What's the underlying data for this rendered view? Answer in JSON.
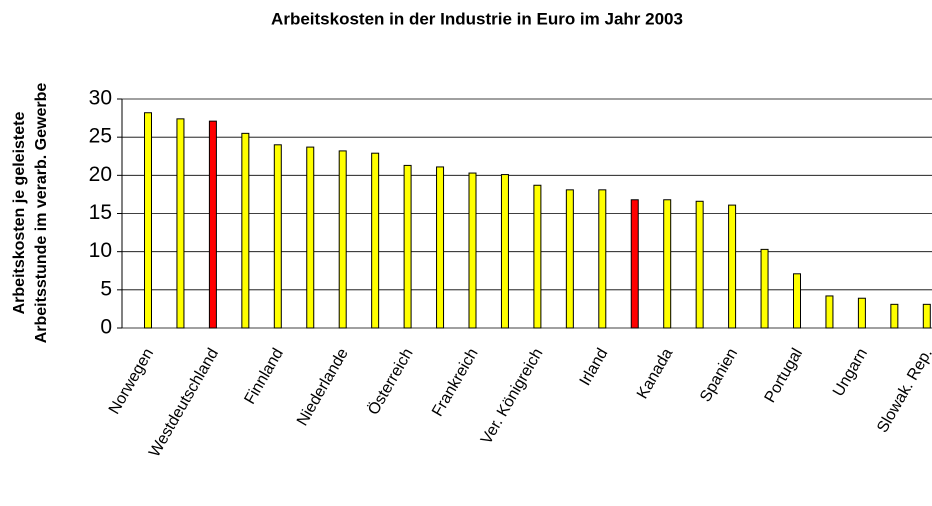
{
  "chart_data": {
    "type": "bar",
    "title": "Arbeitskosten in der Industrie in Euro im Jahr 2003",
    "y_label": [
      "Arbeitskosten je geleistete",
      "Arbeitsstunde im verarb. Gewerbe"
    ],
    "categories": [
      "Norwegen",
      null,
      "Westdeutschland",
      null,
      "Finnland",
      null,
      "Niederlande",
      null,
      "Österreich",
      null,
      "Frankreich",
      null,
      "Ver. Königreich",
      null,
      "Irland",
      null,
      "Kanada",
      null,
      "Spanien",
      null,
      "Portugal",
      null,
      "Ungarn",
      null,
      "Slowak. Rep."
    ],
    "values": [
      28.2,
      27.4,
      27.1,
      25.5,
      24.0,
      23.7,
      23.2,
      22.9,
      21.3,
      21.1,
      20.3,
      20.1,
      18.7,
      18.1,
      18.1,
      16.8,
      16.8,
      16.6,
      16.1,
      10.3,
      7.1,
      4.2,
      3.9,
      3.1,
      3.1
    ],
    "colors": [
      "#ffff00",
      "#ffff00",
      "#ff0000",
      "#ffff00",
      "#ffff00",
      "#ffff00",
      "#ffff00",
      "#ffff00",
      "#ffff00",
      "#ffff00",
      "#ffff00",
      "#ffff00",
      "#ffff00",
      "#ffff00",
      "#ffff00",
      "#ff0000",
      "#ffff00",
      "#ffff00",
      "#ffff00",
      "#ffff00",
      "#ffff00",
      "#ffff00",
      "#ffff00",
      "#ffff00",
      "#ffff00"
    ],
    "ylim": [
      0,
      30
    ],
    "yticks": [
      0,
      5,
      10,
      15,
      20,
      25,
      30
    ],
    "grid": true
  }
}
